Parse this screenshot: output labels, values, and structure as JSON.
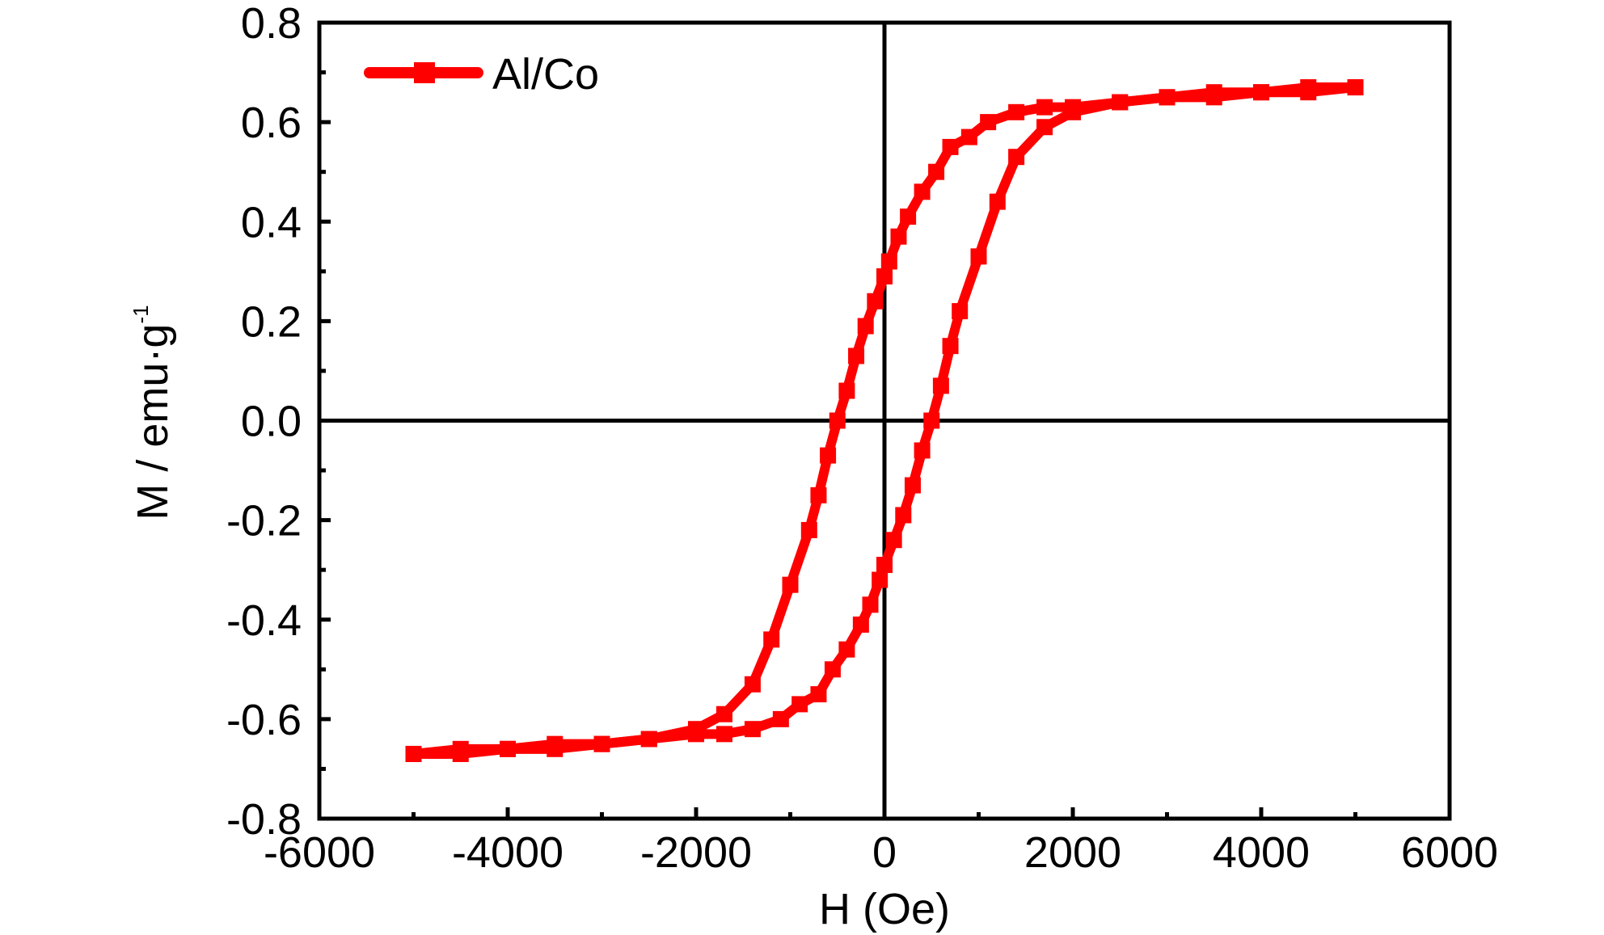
{
  "chart_data": {
    "type": "scatter",
    "title": "",
    "xlabel": "H (Oe)",
    "ylabel_main": "M / emu·g",
    "ylabel_sup": "-1",
    "xlim": [
      -6000,
      6000
    ],
    "ylim": [
      -0.8,
      0.8
    ],
    "xticks": [
      -6000,
      -4000,
      -2000,
      0,
      2000,
      4000,
      6000
    ],
    "xtick_labels": [
      "-6000",
      "-4000",
      "-2000",
      "0",
      "2000",
      "4000",
      "6000"
    ],
    "yticks": [
      -0.8,
      -0.6,
      -0.4,
      -0.2,
      0.0,
      0.2,
      0.4,
      0.6,
      0.8
    ],
    "ytick_labels": [
      "-0.8",
      "-0.6",
      "-0.4",
      "-0.2",
      "0.0",
      "0.2",
      "0.4",
      "0.6",
      "0.8"
    ],
    "zero_lines": true,
    "grid": false,
    "legend_position": "top-left",
    "series": [
      {
        "name": "Al/Co",
        "color": "#ff0000",
        "marker": "square",
        "branches": [
          {
            "x": [
              5000,
              4500,
              4000,
              3500,
              3000,
              2500,
              2000,
              1700,
              1400,
              1100,
              900,
              700,
              550,
              400,
              250,
              150,
              50,
              0,
              -100,
              -200,
              -300,
              -400,
              -500,
              -600,
              -700,
              -800,
              -1000,
              -1200,
              -1400,
              -1700,
              -2000,
              -2500,
              -3000,
              -3500,
              -4000,
              -4500,
              -5000
            ],
            "y": [
              0.67,
              0.66,
              0.66,
              0.65,
              0.65,
              0.64,
              0.63,
              0.63,
              0.62,
              0.6,
              0.57,
              0.55,
              0.5,
              0.46,
              0.41,
              0.37,
              0.32,
              0.29,
              0.24,
              0.19,
              0.13,
              0.06,
              0.0,
              -0.07,
              -0.15,
              -0.22,
              -0.33,
              -0.44,
              -0.53,
              -0.59,
              -0.62,
              -0.64,
              -0.65,
              -0.66,
              -0.66,
              -0.67,
              -0.67
            ]
          },
          {
            "x": [
              -5000,
              -4500,
              -4000,
              -3500,
              -3000,
              -2500,
              -2000,
              -1700,
              -1400,
              -1100,
              -900,
              -700,
              -550,
              -400,
              -250,
              -150,
              -50,
              0,
              100,
              200,
              300,
              400,
              500,
              600,
              700,
              800,
              1000,
              1200,
              1400,
              1700,
              2000,
              2500,
              3000,
              3500,
              4000,
              4500,
              5000
            ],
            "y": [
              -0.67,
              -0.66,
              -0.66,
              -0.65,
              -0.65,
              -0.64,
              -0.63,
              -0.63,
              -0.62,
              -0.6,
              -0.57,
              -0.55,
              -0.5,
              -0.46,
              -0.41,
              -0.37,
              -0.32,
              -0.29,
              -0.24,
              -0.19,
              -0.13,
              -0.06,
              0.0,
              0.07,
              0.15,
              0.22,
              0.33,
              0.44,
              0.53,
              0.59,
              0.62,
              0.64,
              0.65,
              0.66,
              0.66,
              0.67,
              0.67
            ]
          }
        ]
      }
    ]
  }
}
